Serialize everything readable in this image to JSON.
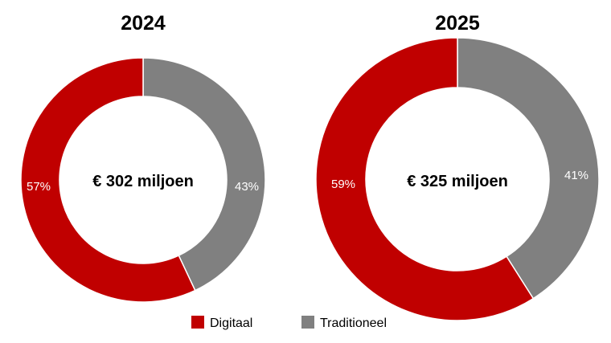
{
  "chart_data": {
    "type": "pie",
    "style": "donut",
    "legend": {
      "position": "bottom",
      "entries": [
        {
          "name": "Digitaal",
          "color": "#c00000"
        },
        {
          "name": "Traditioneel",
          "color": "#808080"
        }
      ]
    },
    "charts": [
      {
        "title": "2024",
        "center_label": "€ 302 miljoen",
        "slices": [
          {
            "name": "Digitaal",
            "value": 57,
            "label": "57%",
            "color": "#c00000"
          },
          {
            "name": "Traditioneel",
            "value": 43,
            "label": "43%",
            "color": "#808080"
          }
        ]
      },
      {
        "title": "2025",
        "center_label": "€ 325 miljoen",
        "slices": [
          {
            "name": "Digitaal",
            "value": 59,
            "label": "59%",
            "color": "#c00000"
          },
          {
            "name": "Traditioneel",
            "value": 41,
            "label": "41%",
            "color": "#808080"
          }
        ]
      }
    ]
  }
}
